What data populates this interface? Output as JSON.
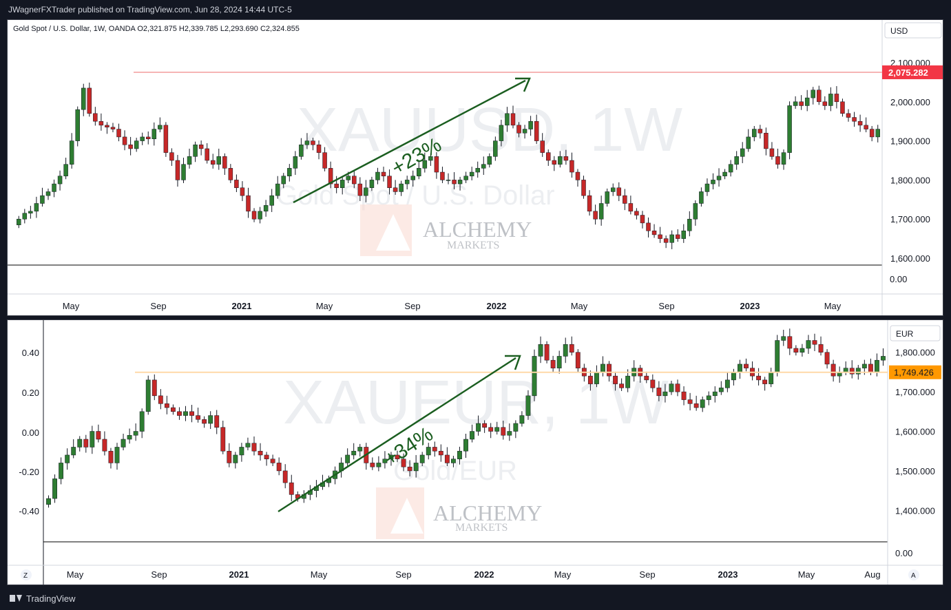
{
  "header": {
    "published": "JWagnerFXTrader published on TradingView.com, Jun 28, 2024 14:44 UTC-5"
  },
  "footer": {
    "brand": "TradingView"
  },
  "watermark": {
    "alchemy": "ALCHEMY",
    "markets": "MARKETS"
  },
  "colors": {
    "up": "#2e7d32",
    "down": "#c62828",
    "arrow": "#1b5e20",
    "price_label_top": "#f23645",
    "price_label_bottom": "#ff9800"
  },
  "top": {
    "legend": "Gold Spot / U.S. Dollar, 1W, OANDA  O2,321.875  H2,339.785  L2,293.690  C2,324.855",
    "currency": "USD",
    "watermark_symbol": "XAUUSD, 1W",
    "watermark_name": "Gold Spot / U.S. Dollar",
    "annotation": "+23%",
    "price_label": "2,075.282",
    "indicator_zero": "0.00",
    "time_labels": [
      "May",
      "Sep",
      "2021",
      "May",
      "Sep",
      "2022",
      "May",
      "Sep",
      "2023",
      "May"
    ],
    "y_ticks": [
      "2,100.000",
      "2,000.000",
      "1,900.000",
      "1,800.000",
      "1,700.000",
      "1,600.000"
    ],
    "y_values": [
      2100,
      2000,
      1900,
      1800,
      1700,
      1600
    ],
    "level": 2075.282
  },
  "bottom": {
    "currency": "EUR",
    "watermark_symbol": "XAUEUR, 1W",
    "watermark_name": "Gold/EUR",
    "annotation": "+34%",
    "price_label": "1,749.426",
    "indicator_zero": "0.00",
    "time_labels": [
      "May",
      "Sep",
      "2021",
      "May",
      "Sep",
      "2022",
      "May",
      "Sep",
      "2023",
      "May",
      "Aug"
    ],
    "y_ticks": [
      "1,800.000",
      "1,700.000",
      "1,600.000",
      "1,500.000",
      "1,400.000"
    ],
    "y_values": [
      1800,
      1700,
      1600,
      1500,
      1400
    ],
    "left_ticks": [
      "0.40",
      "0.20",
      "0.00",
      "-0.20",
      "-0.40"
    ],
    "level": 1749.426,
    "z_button": "Z",
    "a_button": "A"
  },
  "chart_data": [
    {
      "type": "candlestick",
      "title": "Gold Spot / U.S. Dollar, 1W, OANDA",
      "ylabel": "USD",
      "ylim": [
        1600,
        2100
      ],
      "x_ticks": [
        "May",
        "Sep",
        "2021",
        "May",
        "Sep",
        "2022",
        "May",
        "Sep",
        "2023",
        "May"
      ],
      "horizontal_level": 2075.282,
      "annotation": "+23%",
      "close": [
        1700,
        1715,
        1720,
        1740,
        1760,
        1770,
        1790,
        1810,
        1840,
        1900,
        1980,
        2035,
        1970,
        1950,
        1940,
        1935,
        1930,
        1910,
        1890,
        1880,
        1900,
        1910,
        1905,
        1930,
        1940,
        1870,
        1850,
        1800,
        1840,
        1860,
        1890,
        1880,
        1850,
        1840,
        1860,
        1830,
        1800,
        1780,
        1760,
        1720,
        1700,
        1720,
        1735,
        1760,
        1790,
        1810,
        1830,
        1860,
        1890,
        1900,
        1890,
        1870,
        1830,
        1790,
        1780,
        1800,
        1810,
        1790,
        1760,
        1780,
        1800,
        1820,
        1810,
        1780,
        1770,
        1790,
        1800,
        1810,
        1830,
        1850,
        1860,
        1820,
        1800,
        1800,
        1790,
        1800,
        1810,
        1820,
        1830,
        1840,
        1860,
        1900,
        1940,
        1970,
        1940,
        1920,
        1930,
        1950,
        1900,
        1870,
        1850,
        1840,
        1860,
        1850,
        1820,
        1800,
        1760,
        1720,
        1700,
        1740,
        1770,
        1780,
        1760,
        1740,
        1720,
        1710,
        1690,
        1670,
        1660,
        1650,
        1640,
        1660,
        1650,
        1670,
        1700,
        1740,
        1770,
        1790,
        1800,
        1810,
        1820,
        1840,
        1860,
        1880,
        1910,
        1930,
        1920,
        1880,
        1860,
        1840,
        1870,
        1990,
        2000,
        1990,
        2010,
        2030,
        2000,
        1990,
        2020,
        2000,
        1970,
        1960,
        1950,
        1940,
        1930,
        1910,
        1930
      ]
    },
    {
      "type": "candlestick",
      "title": "XAUEUR, 1W",
      "ylabel": "EUR",
      "ylim": [
        1350,
        1850
      ],
      "x_ticks": [
        "May",
        "Sep",
        "2021",
        "May",
        "Sep",
        "2022",
        "May",
        "Sep",
        "2023",
        "May",
        "Aug"
      ],
      "horizontal_level": 1749.426,
      "annotation": "+34%",
      "close": [
        1430,
        1480,
        1520,
        1540,
        1560,
        1580,
        1560,
        1600,
        1580,
        1550,
        1520,
        1560,
        1580,
        1590,
        1600,
        1650,
        1730,
        1690,
        1670,
        1660,
        1650,
        1640,
        1650,
        1640,
        1630,
        1620,
        1640,
        1610,
        1550,
        1520,
        1540,
        1560,
        1570,
        1550,
        1540,
        1530,
        1520,
        1500,
        1470,
        1440,
        1430,
        1440,
        1450,
        1460,
        1470,
        1480,
        1500,
        1520,
        1540,
        1550,
        1560,
        1520,
        1510,
        1520,
        1530,
        1540,
        1530,
        1510,
        1500,
        1520,
        1540,
        1560,
        1550,
        1540,
        1520,
        1530,
        1550,
        1580,
        1600,
        1620,
        1610,
        1600,
        1610,
        1590,
        1600,
        1620,
        1640,
        1690,
        1790,
        1820,
        1780,
        1760,
        1790,
        1820,
        1800,
        1760,
        1740,
        1720,
        1750,
        1770,
        1740,
        1720,
        1710,
        1740,
        1760,
        1740,
        1730,
        1710,
        1690,
        1700,
        1720,
        1700,
        1680,
        1670,
        1660,
        1680,
        1690,
        1700,
        1710,
        1730,
        1750,
        1770,
        1760,
        1740,
        1730,
        1720,
        1750,
        1830,
        1840,
        1810,
        1800,
        1810,
        1830,
        1820,
        1800,
        1770,
        1740,
        1750,
        1760,
        1745,
        1760,
        1770,
        1750,
        1780,
        1790
      ]
    }
  ]
}
